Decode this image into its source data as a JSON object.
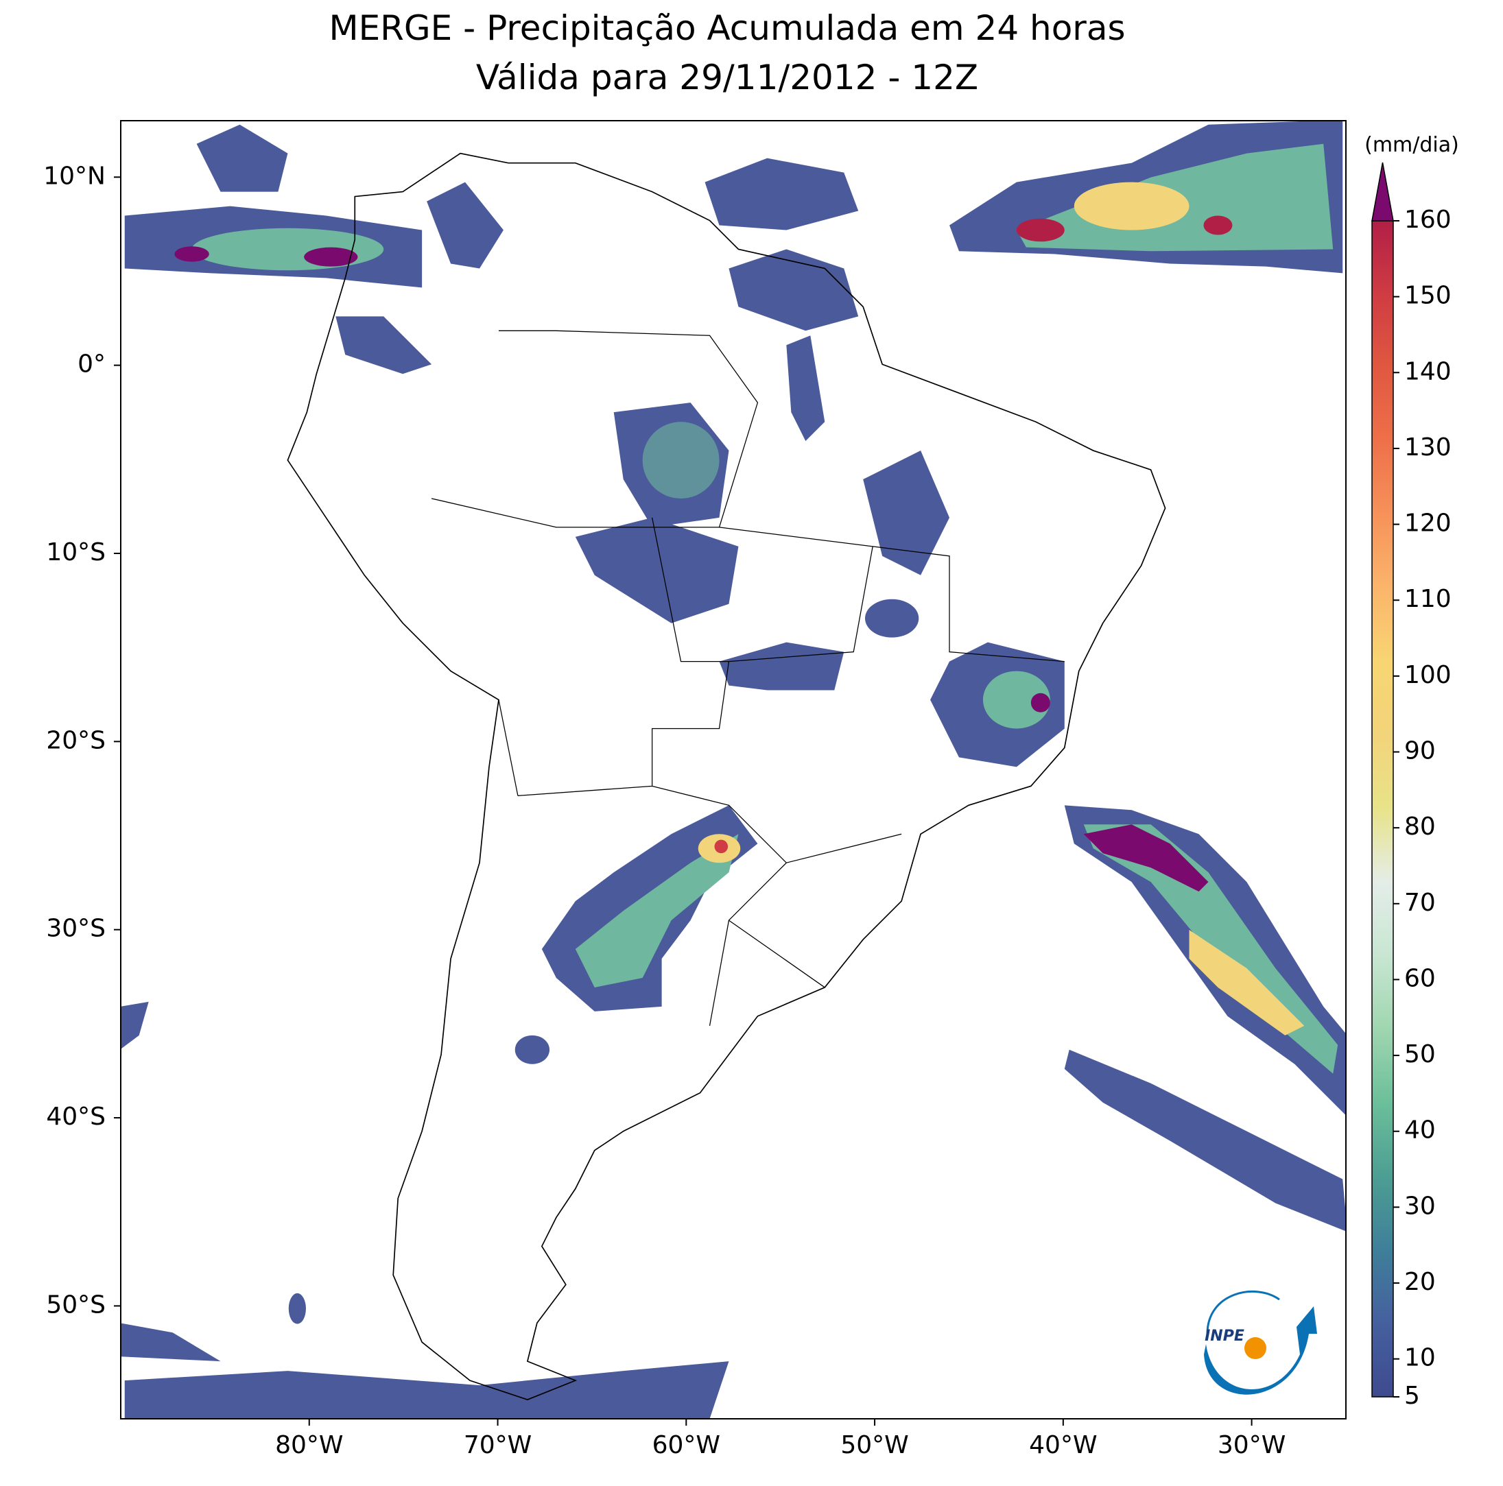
{
  "chart_data": {
    "type": "map",
    "title": "MERGE - Precipitação Acumulada em 24 horas",
    "subtitle": "Válida para 29/11/2012 - 12Z",
    "xlim": [
      -90,
      -25
    ],
    "ylim": [
      -56,
      13
    ],
    "xticks": [
      {
        "value": -80,
        "label": "80°W"
      },
      {
        "value": -70,
        "label": "70°W"
      },
      {
        "value": -60,
        "label": "60°W"
      },
      {
        "value": -50,
        "label": "50°W"
      },
      {
        "value": -40,
        "label": "40°W"
      },
      {
        "value": -30,
        "label": "30°W"
      }
    ],
    "yticks": [
      {
        "value": 10,
        "label": "10°N"
      },
      {
        "value": 0,
        "label": "0°"
      },
      {
        "value": -10,
        "label": "10°S"
      },
      {
        "value": -20,
        "label": "20°S"
      },
      {
        "value": -30,
        "label": "30°S"
      },
      {
        "value": -40,
        "label": "40°S"
      },
      {
        "value": -50,
        "label": "50°S"
      }
    ],
    "colorbar": {
      "label": "(mm/dia)",
      "lim": [
        5,
        160
      ],
      "ticks": [
        5,
        10,
        20,
        30,
        40,
        50,
        60,
        70,
        80,
        90,
        100,
        110,
        120,
        130,
        140,
        150,
        160
      ],
      "colors": [
        "#3e4a8f",
        "#45609e",
        "#3f7f9a",
        "#4d9e93",
        "#6bbf9a",
        "#9fd6b0",
        "#c8e6d2",
        "#e4ede8",
        "#e8e38a",
        "#f2d47a",
        "#f8d572",
        "#fbb56b",
        "#f6925a",
        "#ee7049",
        "#e05840",
        "#cf3c43",
        "#b21f46"
      ],
      "extend_color": "#7b0a6e"
    },
    "logo": {
      "text": "INPE"
    }
  }
}
